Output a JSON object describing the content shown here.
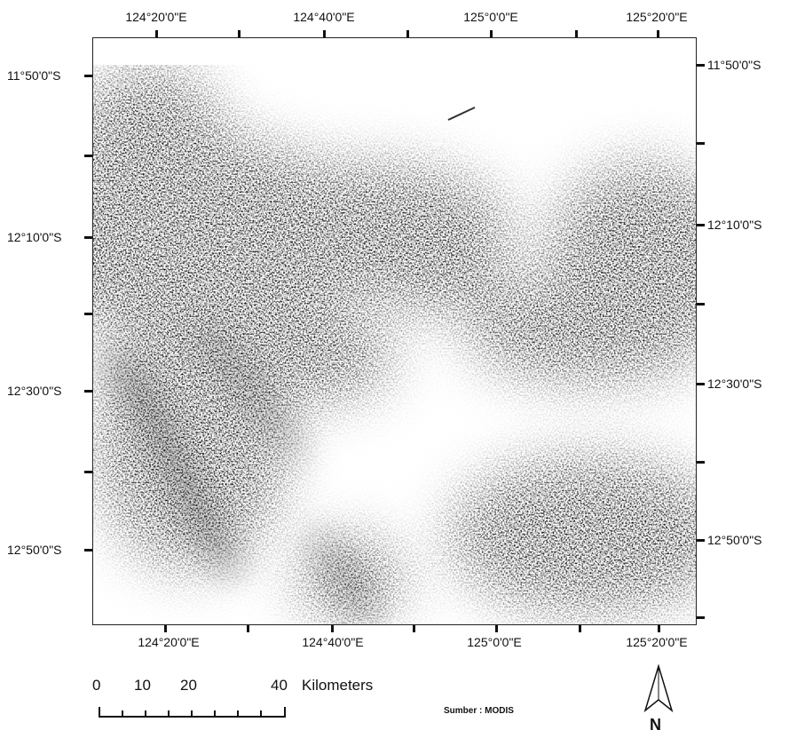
{
  "graticule": {
    "longitude_labels": [
      "124°20'0\"E",
      "124°40'0\"E",
      "125°0'0\"E",
      "125°20'0\"E"
    ],
    "latitude_labels": [
      "11°50'0\"S",
      "12°10'0\"S",
      "12°30'0\"S",
      "12°50'0\"S"
    ]
  },
  "scale_bar": {
    "numbers": [
      "0",
      "10",
      "20",
      "40"
    ],
    "unit": "Kilometers"
  },
  "north_arrow": {
    "label": "N",
    "icon": "north-arrow-icon"
  },
  "source": "Sumber : MODIS",
  "colors": {
    "dark": "#2a2a2a",
    "mid": "#777777",
    "paper": "#ffffff"
  }
}
